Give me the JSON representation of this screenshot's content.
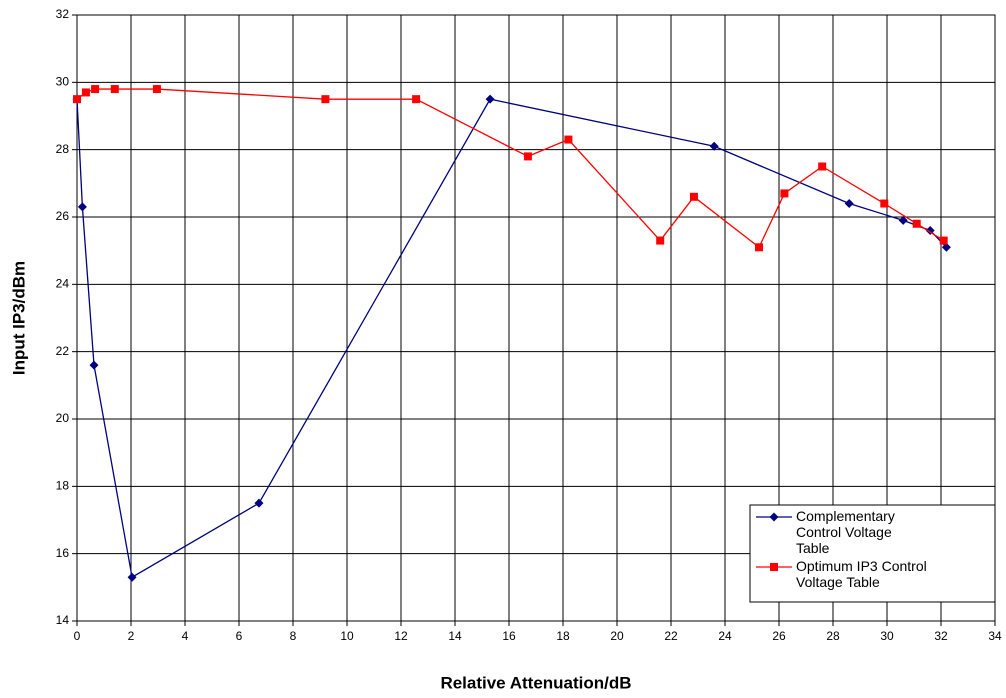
{
  "chart_data": {
    "type": "line",
    "x_label": "Relative Attenuation/dB",
    "y_label": "Input IP3/dBm",
    "xlim": [
      0,
      34
    ],
    "xticks": [
      0,
      2,
      4,
      6,
      8,
      10,
      12,
      14,
      16,
      18,
      20,
      22,
      24,
      26,
      28,
      30,
      32,
      34
    ],
    "ylim": [
      14,
      32
    ],
    "yticks": [
      14,
      16,
      18,
      20,
      22,
      24,
      26,
      28,
      30,
      32
    ],
    "grid": true,
    "legend": "lower right",
    "series": [
      {
        "name": "Complementary Control Voltage Table",
        "color": "#000080",
        "marker": "diamond",
        "x": [
          0,
          0.2,
          0.63,
          2.04,
          6.74,
          15.3,
          23.6,
          28.6,
          30.6,
          31.6,
          32.2
        ],
        "values": [
          29.5,
          26.3,
          21.6,
          15.3,
          17.5,
          29.5,
          28.1,
          26.4,
          25.9,
          25.6,
          25.1
        ]
      },
      {
        "name": "Optimum IP3 Control Voltage Table",
        "color": "#ff0000",
        "marker": "square",
        "x": [
          0,
          0.33,
          0.67,
          1.4,
          2.96,
          9.2,
          12.56,
          16.7,
          18.2,
          21.6,
          22.85,
          25.26,
          26.2,
          27.6,
          29.9,
          31.1,
          32.1
        ],
        "values": [
          29.5,
          29.7,
          29.8,
          29.8,
          29.8,
          29.5,
          29.5,
          27.8,
          28.3,
          25.3,
          26.6,
          25.1,
          26.7,
          27.5,
          26.4,
          25.8,
          25.3
        ]
      }
    ]
  }
}
